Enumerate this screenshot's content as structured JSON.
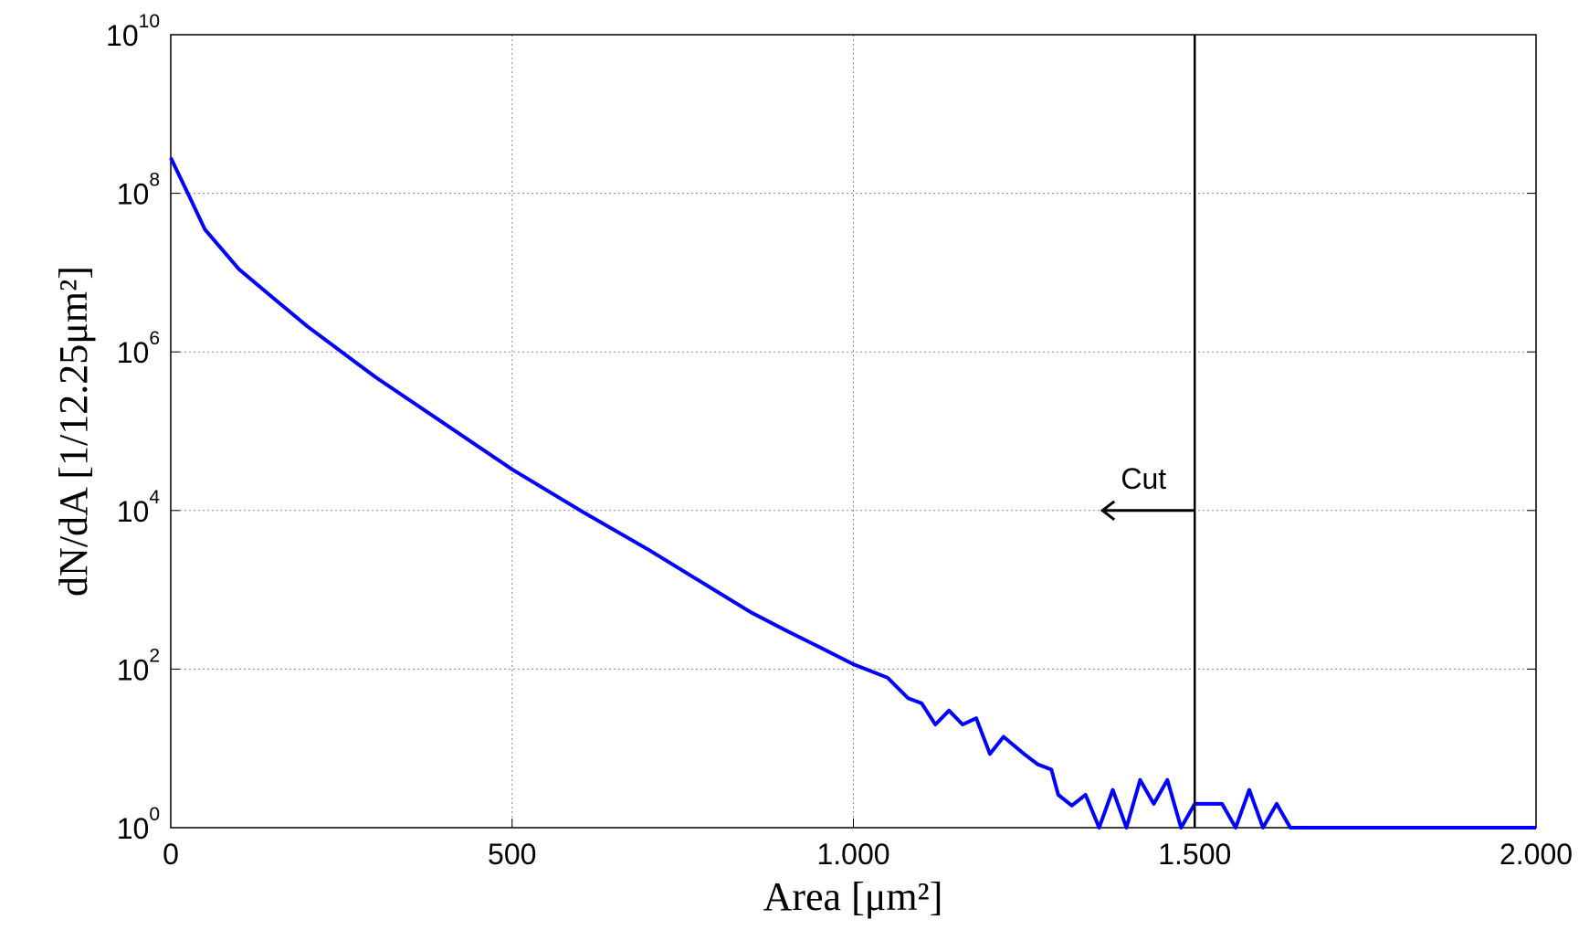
{
  "chart_data": {
    "type": "line",
    "x_label": "Area [μm²]",
    "y_label": "dN/dA [1/12.25μm²]",
    "log_y": true,
    "grid": true,
    "xlim": [
      0,
      2000
    ],
    "ylim": [
      1,
      10000000000
    ],
    "xticks": [
      0,
      500,
      {
        "value": 1000,
        "label": "1.000"
      },
      {
        "value": 1500,
        "label": "1.500"
      },
      {
        "value": 2000,
        "label": "2.000"
      }
    ],
    "yticks": [
      {
        "value": 1,
        "label": "10",
        "exponent": "0"
      },
      {
        "value": 100,
        "label": "10",
        "exponent": "2"
      },
      {
        "value": 10000,
        "label": "10",
        "exponent": "4"
      },
      {
        "value": 1000000,
        "label": "10",
        "exponent": "6"
      },
      {
        "value": 100000000,
        "label": "10",
        "exponent": "8"
      },
      {
        "value": 10000000000,
        "label": "10",
        "exponent": "10"
      }
    ],
    "annotations": [
      {
        "text": "Cut",
        "x": 1500
      }
    ],
    "series": [
      {
        "color": "#0000ff",
        "x": [
          0,
          25,
          50,
          100,
          150,
          200,
          300,
          400,
          500,
          600,
          700,
          800,
          850,
          900,
          950,
          1000,
          1050,
          1080,
          1100,
          1120,
          1140,
          1160,
          1180,
          1200,
          1220,
          1250,
          1270,
          1290,
          1300,
          1320,
          1340,
          1360,
          1380,
          1400,
          1420,
          1440,
          1460,
          1480,
          1500,
          1520,
          1540,
          1560,
          1580,
          1600,
          1620,
          1640,
          2000
        ],
        "values": [
          280000000,
          100000000,
          35000000,
          11000000,
          4800000,
          2100000,
          480000,
          126000,
          33000,
          10000,
          3200,
          950,
          520,
          310,
          190,
          115,
          78,
          43,
          37,
          20,
          30,
          20,
          24,
          8.5,
          14,
          8.5,
          6.3,
          5.4,
          2.6,
          1.9,
          2.6,
          1,
          3,
          1,
          4,
          2,
          4,
          1,
          2,
          2,
          2,
          1,
          3,
          1,
          2,
          1,
          1
        ]
      }
    ]
  }
}
